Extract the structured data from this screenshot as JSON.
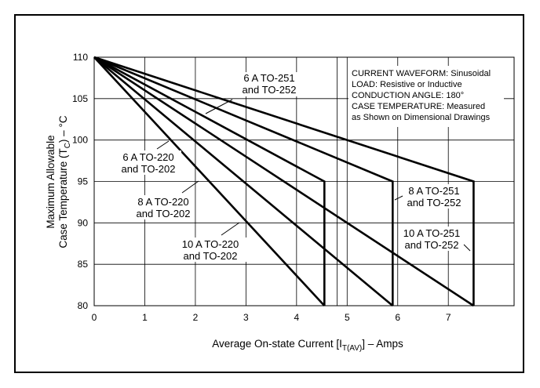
{
  "chart_data": {
    "type": "line",
    "xlabel": {
      "main": "Average On-state Current [I",
      "sub": "T(AV)",
      "tail": "] – Amps"
    },
    "ylabel": {
      "line1": "Maximum Allowable",
      "line2_main": "Case Temperature (T",
      "line2_sub": "C",
      "line2_tail": ") – °C"
    },
    "xlim": [
      0,
      8.3
    ],
    "ylim": [
      80,
      110
    ],
    "x_ticks": [
      0,
      1,
      2,
      3,
      4,
      5,
      6,
      7
    ],
    "y_ticks": [
      80,
      85,
      90,
      95,
      100,
      105,
      110
    ],
    "grid": true,
    "extra_vertical_gridline": 4.8,
    "notes": [
      "CURRENT WAVEFORM: Sinusoidal",
      "LOAD: Resistive or Inductive",
      "CONDUCTION ANGLE: 180°",
      "CASE TEMPERATURE: Measured",
      "as Shown on Dimensional Drawings"
    ],
    "series": [
      {
        "name": "10 A TO-220 and TO-202",
        "x": [
          0,
          4.55
        ],
        "y": [
          110,
          80
        ]
      },
      {
        "name": "8 A TO-220 and TO-202",
        "x": [
          0,
          4.55,
          4.55
        ],
        "y": [
          110,
          95,
          80
        ]
      },
      {
        "name": "6 A TO-220 and TO-202",
        "x": [
          0,
          5.9
        ],
        "y": [
          110,
          80
        ]
      },
      {
        "name": "8 A TO-251 and TO-252",
        "x": [
          0,
          5.9,
          5.9
        ],
        "y": [
          110,
          95,
          80
        ]
      },
      {
        "name": "6 A TO-251 and TO-252",
        "x": [
          0,
          7.5,
          7.5
        ],
        "y": [
          110,
          95,
          80
        ]
      },
      {
        "name": "10 A TO-251 and TO-252",
        "x": [
          0,
          7.5
        ],
        "y": [
          110,
          80
        ]
      }
    ],
    "annotations": [
      {
        "id": "ann-6a-to251",
        "lines": [
          "6 A TO-251",
          "and TO-252"
        ]
      },
      {
        "id": "ann-6a-to220",
        "lines": [
          "6 A TO-220",
          "and TO-202"
        ]
      },
      {
        "id": "ann-8a-to220",
        "lines": [
          "8 A TO-220",
          "and TO-202"
        ]
      },
      {
        "id": "ann-10a-to220",
        "lines": [
          "10 A TO-220",
          "and TO-202"
        ]
      },
      {
        "id": "ann-8a-to251",
        "lines": [
          "8 A TO-251",
          "and TO-252"
        ]
      },
      {
        "id": "ann-10a-to251",
        "lines": [
          "10 A TO-251",
          "and TO-252"
        ]
      }
    ]
  }
}
